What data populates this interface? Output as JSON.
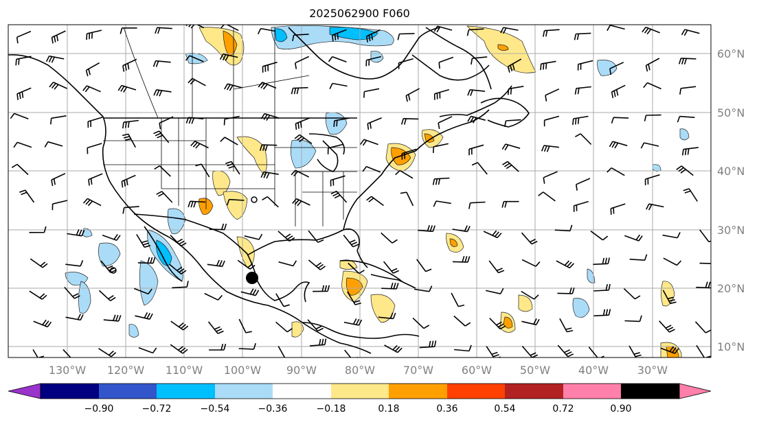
{
  "title": "2025062900 F060",
  "longitude_labels": [
    "130°W",
    "120°W",
    "110°W",
    "100°W",
    "90°W",
    "80°W",
    "70°W",
    "60°W",
    "50°W",
    "40°W",
    "30°W"
  ],
  "latitude_labels": [
    "60°N",
    "50°N",
    "40°N",
    "30°N",
    "20°N",
    "10°N"
  ],
  "colorbar": {
    "ticks": [
      "−0.90",
      "−0.72",
      "−0.54",
      "−0.36",
      "−0.18",
      "0.18",
      "0.36",
      "0.54",
      "0.72",
      "0.90"
    ],
    "colors": [
      "#9933cc",
      "#000080",
      "#3355cc",
      "#00bfff",
      "#aadcf8",
      "#ffffff",
      "#ffe88a",
      "#ffa000",
      "#ff4000",
      "#b22222",
      "#ff80aa"
    ]
  },
  "marker": {
    "label": "location-marker"
  }
}
